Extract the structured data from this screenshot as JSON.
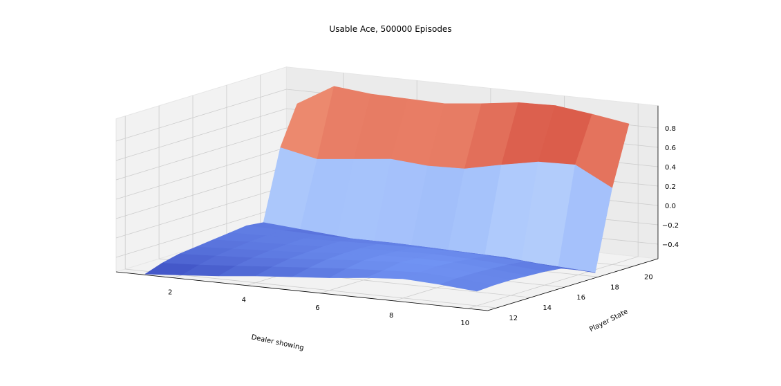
{
  "chart_data": {
    "type": "surface3d",
    "title": "Usable Ace, 500000 Episodes",
    "xlabel": "Dealer showing",
    "ylabel": "Player State",
    "zlabel": "",
    "x": [
      1,
      2,
      3,
      4,
      5,
      6,
      7,
      8,
      9,
      10
    ],
    "y": [
      12,
      13,
      14,
      15,
      16,
      17,
      18,
      19,
      20,
      21
    ],
    "xlim": [
      1,
      10
    ],
    "ylim": [
      12,
      21
    ],
    "zlim": [
      -0.55,
      0.95
    ],
    "xticks": [
      2,
      4,
      6,
      8,
      10
    ],
    "yticks": [
      12,
      14,
      16,
      18,
      20
    ],
    "zticks": [
      "-0.4",
      "-0.2",
      "0.0",
      "0.2",
      "0.4",
      "0.6",
      "0.8"
    ],
    "zticks_values": [
      -0.4,
      -0.2,
      0.0,
      0.2,
      0.4,
      0.6,
      0.8
    ],
    "colormap": [
      "#3b4cc0",
      "#7396f5",
      "#b0cbfc",
      "#dddddd",
      "#f6a283",
      "#d95847",
      "#b40426"
    ],
    "z": [
      [
        -0.58,
        -0.55,
        -0.52,
        -0.48,
        -0.45,
        -0.42,
        -0.38,
        -0.35,
        -0.37,
        -0.4
      ],
      [
        -0.52,
        -0.5,
        -0.47,
        -0.44,
        -0.41,
        -0.38,
        -0.36,
        -0.34,
        -0.36,
        -0.39
      ],
      [
        -0.48,
        -0.46,
        -0.44,
        -0.41,
        -0.38,
        -0.35,
        -0.33,
        -0.33,
        -0.36,
        -0.39
      ],
      [
        -0.46,
        -0.44,
        -0.42,
        -0.4,
        -0.37,
        -0.35,
        -0.34,
        -0.34,
        -0.37,
        -0.4
      ],
      [
        -0.44,
        -0.42,
        -0.41,
        -0.39,
        -0.37,
        -0.36,
        -0.35,
        -0.36,
        -0.38,
        -0.41
      ],
      [
        -0.42,
        -0.41,
        -0.4,
        -0.39,
        -0.38,
        -0.37,
        -0.37,
        -0.38,
        -0.4,
        -0.43
      ],
      [
        -0.4,
        -0.41,
        -0.42,
        -0.42,
        -0.42,
        -0.43,
        -0.44,
        -0.45,
        -0.48,
        -0.5
      ],
      [
        -0.42,
        -0.45,
        -0.48,
        -0.51,
        -0.52,
        -0.53,
        -0.54,
        -0.54,
        -0.56,
        -0.58
      ],
      [
        0.3,
        0.22,
        0.26,
        0.3,
        0.27,
        0.28,
        0.36,
        0.43,
        0.44,
        0.24
      ],
      [
        0.7,
        0.92,
        0.88,
        0.87,
        0.86,
        0.9,
        0.95,
        0.96,
        0.91,
        0.85
      ]
    ]
  }
}
